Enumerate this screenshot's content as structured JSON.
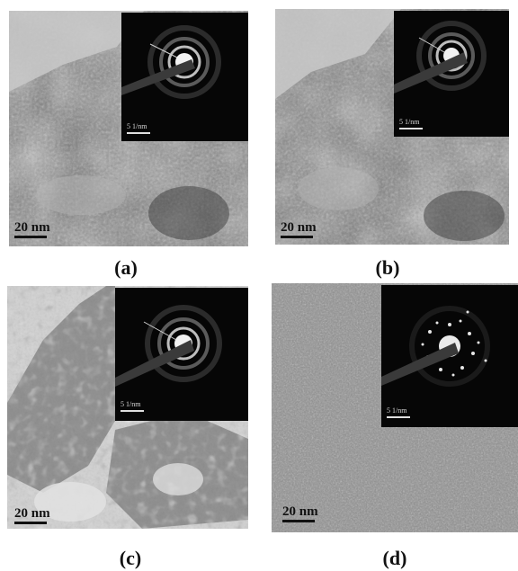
{
  "figure": {
    "panels": [
      {
        "caption": "(a)",
        "scale_bar": "20 nm",
        "inset_scale": "5 1/nm",
        "texture": "dense"
      },
      {
        "caption": "(b)",
        "scale_bar": "20 nm",
        "inset_scale": "5 1/nm",
        "texture": "dense"
      },
      {
        "caption": "(c)",
        "scale_bar": "20 nm",
        "inset_scale": "5 1/nm",
        "texture": "particles"
      },
      {
        "caption": "(d)",
        "scale_bar": "20 nm",
        "inset_scale": "5 1/nm",
        "texture": "fine"
      }
    ]
  }
}
